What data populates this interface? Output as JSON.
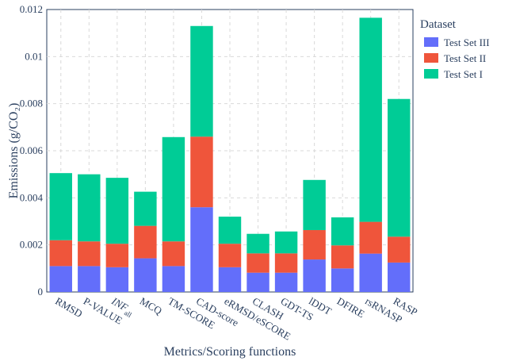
{
  "chart_data": {
    "type": "bar",
    "stacked": true,
    "title": "",
    "xlabel": "Metrics/Scoring functions",
    "ylabel": "Emissions (g/CO₂)",
    "ylim": [
      0,
      0.012
    ],
    "yticks": [
      "0",
      "0.002",
      "0.004",
      "0.006",
      "0.008",
      "0.01",
      "0.012"
    ],
    "grid": true,
    "legend_title": "Dataset",
    "legend_position": "top-right",
    "categories": [
      "RMSD",
      "P-VALUE",
      "INF_all",
      "MCQ",
      "TM-SCORE",
      "CAD-score",
      "eRMSD/eSCORE",
      "CLASH",
      "GDT-TS",
      "lDDT",
      "DFIRE",
      "rsRNASP",
      "RASP"
    ],
    "series": [
      {
        "name": "Test Set III",
        "color": "#636efa",
        "values": [
          0.0011,
          0.0011,
          0.00105,
          0.00143,
          0.0011,
          0.0036,
          0.00105,
          0.00082,
          0.00082,
          0.00138,
          0.001,
          0.00163,
          0.00125
        ]
      },
      {
        "name": "Test Set II",
        "color": "#ef553b",
        "values": [
          0.0011,
          0.00105,
          0.001,
          0.00138,
          0.00105,
          0.003,
          0.001,
          0.00082,
          0.00082,
          0.00125,
          0.00098,
          0.00135,
          0.0011
        ]
      },
      {
        "name": "Test Set I",
        "color": "#00cc96",
        "values": [
          0.00285,
          0.00285,
          0.0028,
          0.00145,
          0.00443,
          0.0047,
          0.00115,
          0.00083,
          0.00093,
          0.00213,
          0.00119,
          0.00867,
          0.00585
        ]
      }
    ]
  }
}
